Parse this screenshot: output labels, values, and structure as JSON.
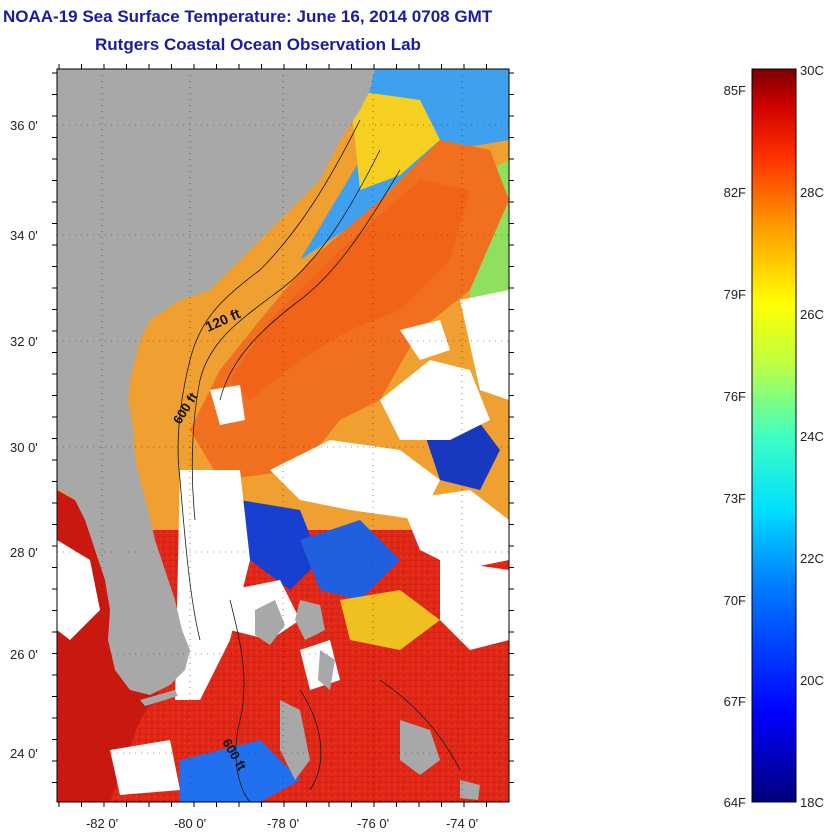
{
  "title": "NOAA-19 Sea Surface Temperature:  June 16, 2014 0708 GMT",
  "subtitle": "Rutgers Coastal Ocean Observation Lab",
  "map": {
    "lat_ticks": [
      "36 0'",
      "34 0'",
      "32 0'",
      "30 0'",
      "28 0'",
      "26 0'",
      "24 0'"
    ],
    "lon_ticks": [
      "-82 0'",
      "-80 0'",
      "-78 0'",
      "-76 0'",
      "-74 0'"
    ],
    "isobath_labels": [
      "120 ft",
      "600 ft",
      "600 ft"
    ],
    "colors": {
      "land": "#a8a8a8",
      "cloud": "#ffffff",
      "warm": "#d81810",
      "orange": "#f59a1c"
    }
  },
  "colorbar": {
    "fahrenheit": [
      "85F",
      "82F",
      "79F",
      "76F",
      "73F",
      "70F",
      "67F",
      "64F"
    ],
    "celsius": [
      "30C",
      "28C",
      "26C",
      "24C",
      "22C",
      "20C",
      "18C"
    ],
    "range_c": [
      18,
      30
    ]
  }
}
